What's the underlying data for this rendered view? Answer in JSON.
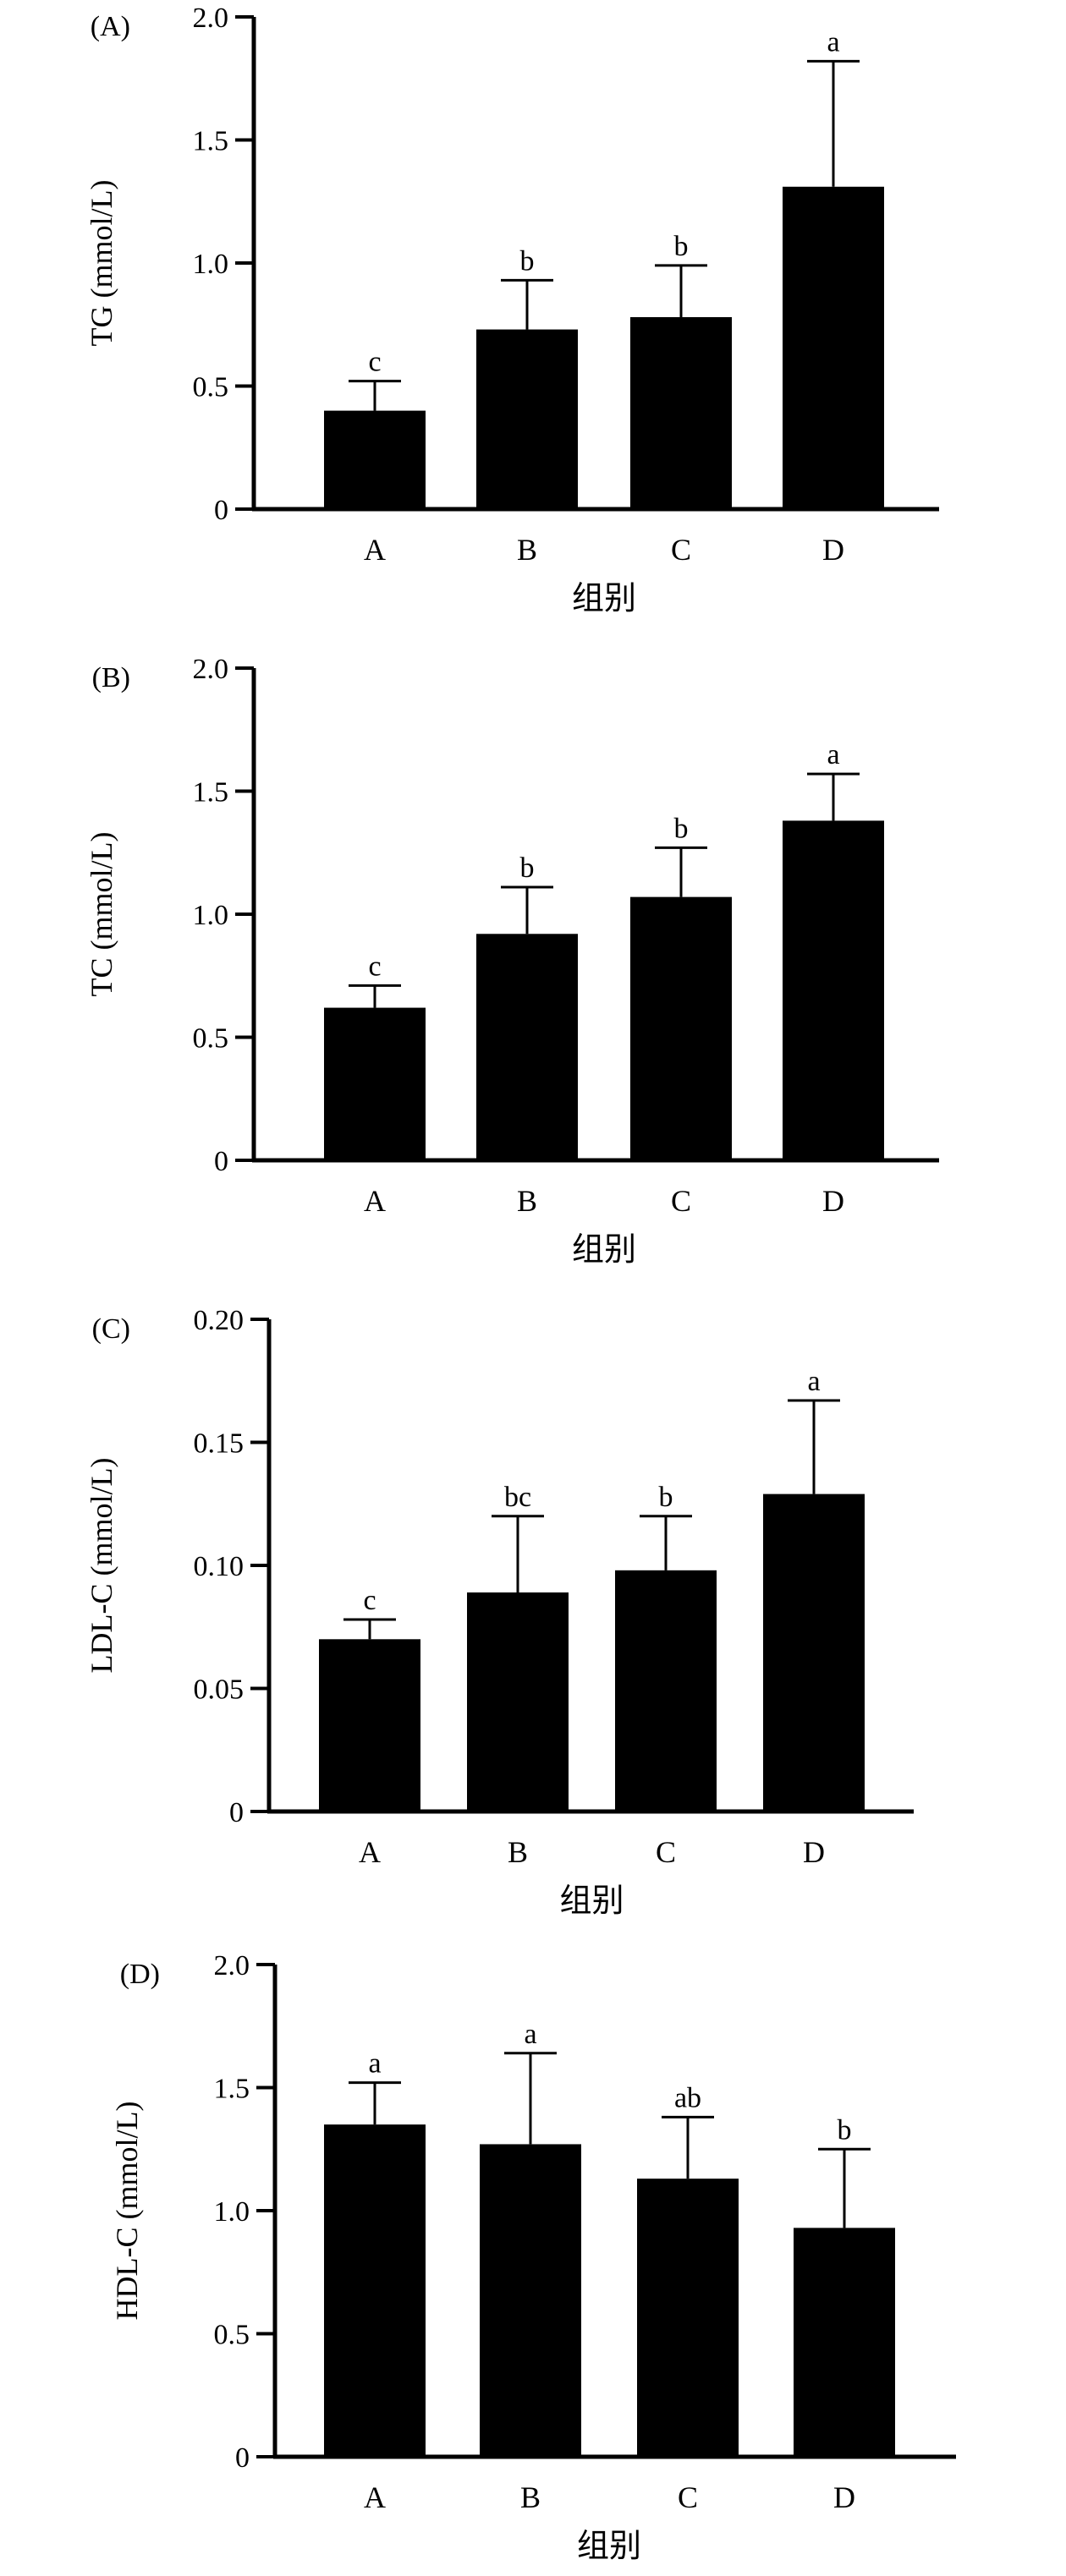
{
  "chart_data": [
    {
      "type": "bar",
      "panel_label": "(A)",
      "categories": [
        "A",
        "B",
        "C",
        "D"
      ],
      "values": [
        0.4,
        0.73,
        0.78,
        1.31
      ],
      "errors": [
        0.12,
        0.2,
        0.21,
        0.51
      ],
      "significance": [
        "c",
        "b",
        "b",
        "a"
      ],
      "xlabel": "组别",
      "ylabel": "TG (mmol/L)",
      "ylim": [
        0,
        2.0
      ],
      "yticks": [
        0,
        0.5,
        1.0,
        1.5,
        2.0
      ],
      "ytick_labels": [
        "0",
        "0.5",
        "1.0",
        "1.5",
        "2.0"
      ],
      "bar_color": "#000000"
    },
    {
      "type": "bar",
      "panel_label": "(B)",
      "categories": [
        "A",
        "B",
        "C",
        "D"
      ],
      "values": [
        0.62,
        0.92,
        1.07,
        1.38
      ],
      "errors": [
        0.09,
        0.19,
        0.2,
        0.19
      ],
      "significance": [
        "c",
        "b",
        "b",
        "a"
      ],
      "xlabel": "组别",
      "ylabel": "TC (mmol/L)",
      "ylim": [
        0,
        2.0
      ],
      "yticks": [
        0,
        0.5,
        1.0,
        1.5,
        2.0
      ],
      "ytick_labels": [
        "0",
        "0.5",
        "1.0",
        "1.5",
        "2.0"
      ],
      "bar_color": "#000000"
    },
    {
      "type": "bar",
      "panel_label": "(C)",
      "categories": [
        "A",
        "B",
        "C",
        "D"
      ],
      "values": [
        0.07,
        0.089,
        0.098,
        0.129
      ],
      "errors": [
        0.008,
        0.031,
        0.022,
        0.038
      ],
      "significance": [
        "c",
        "bc",
        "b",
        "a"
      ],
      "xlabel": "组别",
      "ylabel": "LDL-C (mmol/L)",
      "ylim": [
        0,
        0.2
      ],
      "yticks": [
        0,
        0.05,
        0.1,
        0.15,
        0.2
      ],
      "ytick_labels": [
        "0",
        "0.05",
        "0.10",
        "0.15",
        "0.20"
      ],
      "bar_color": "#000000"
    },
    {
      "type": "bar",
      "panel_label": "(D)",
      "categories": [
        "A",
        "B",
        "C",
        "D"
      ],
      "values": [
        1.35,
        1.27,
        1.13,
        0.93
      ],
      "errors": [
        0.17,
        0.37,
        0.25,
        0.32
      ],
      "significance": [
        "a",
        "a",
        "ab",
        "b"
      ],
      "xlabel": "组别",
      "ylabel": "HDL-C (mmol/L)",
      "ylim": [
        0,
        2.0
      ],
      "yticks": [
        0,
        0.5,
        1.0,
        1.5,
        2.0
      ],
      "ytick_labels": [
        "0",
        "0.5",
        "1.0",
        "1.5",
        "2.0"
      ],
      "bar_color": "#000000"
    }
  ]
}
